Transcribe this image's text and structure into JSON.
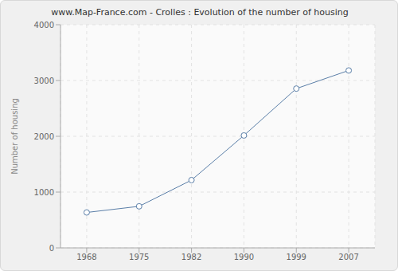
{
  "chart_data": {
    "type": "line",
    "title": "www.Map-France.com - Crolles : Evolution of the number of housing",
    "y_label": "Number of housing",
    "categories": [
      "1968",
      "1975",
      "1982",
      "1990",
      "1999",
      "2007"
    ],
    "values": [
      635,
      745,
      1215,
      2015,
      2855,
      3180
    ],
    "color": "#5b7fa8",
    "marker": "circle",
    "ylim": [
      0,
      4000
    ],
    "yticks": [
      0,
      1000,
      2000,
      3000,
      4000
    ],
    "grid": true
  }
}
